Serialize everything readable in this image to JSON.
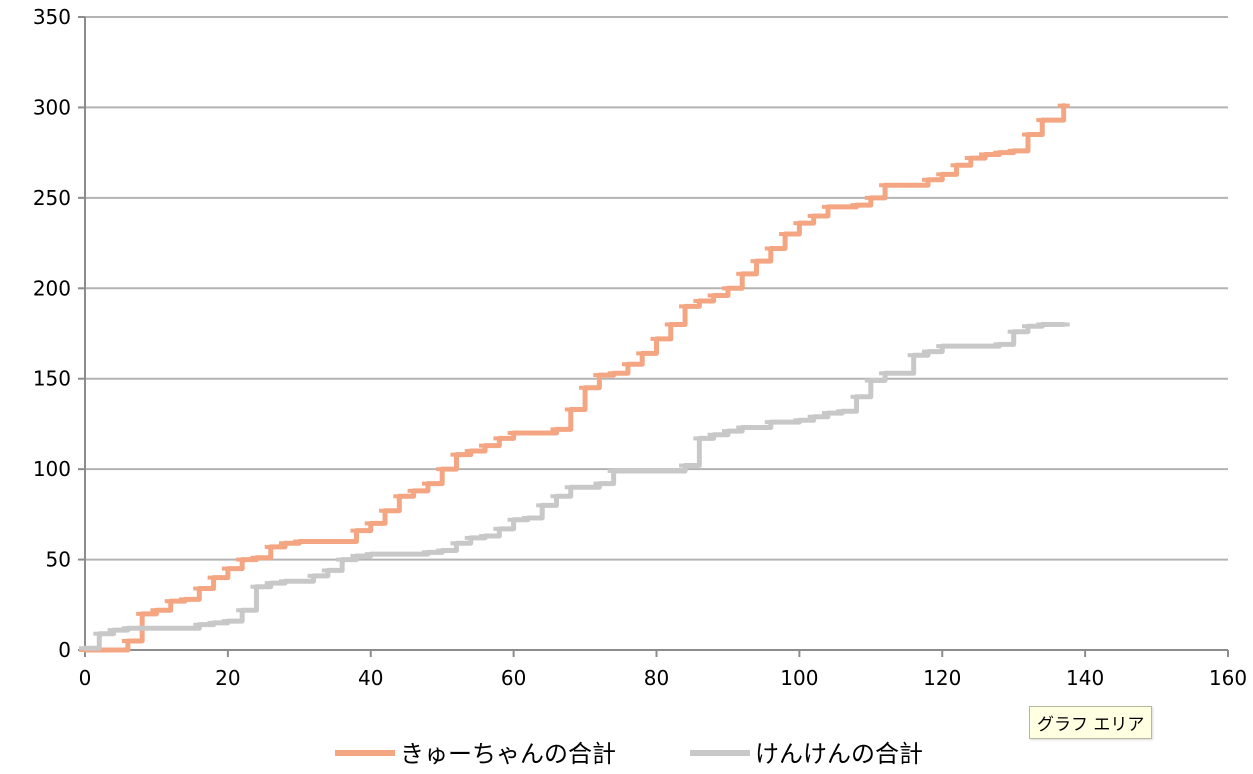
{
  "chart_data": {
    "type": "line",
    "title": "",
    "xlabel": "",
    "ylabel": "",
    "xlim": [
      0,
      160
    ],
    "ylim": [
      0,
      350
    ],
    "x_ticks": [
      0,
      20,
      40,
      60,
      80,
      100,
      120,
      140,
      160
    ],
    "y_ticks": [
      0,
      50,
      100,
      150,
      200,
      250,
      300,
      350
    ],
    "x_tick_labels": [
      "0",
      "20",
      "40",
      "60",
      "80",
      "100",
      "120",
      "140",
      "160"
    ],
    "y_tick_labels": [
      "0",
      "50",
      "100",
      "150",
      "200",
      "250",
      "300",
      "350"
    ],
    "grid": "horizontal",
    "legend_position": "bottom",
    "series": [
      {
        "name": "きゅーちゃんの合計",
        "color": "#f4a582",
        "x": [
          0,
          2,
          4,
          6,
          8,
          10,
          12,
          14,
          16,
          18,
          20,
          22,
          24,
          26,
          28,
          30,
          32,
          34,
          36,
          38,
          40,
          42,
          44,
          46,
          48,
          50,
          52,
          54,
          56,
          58,
          60,
          62,
          64,
          66,
          68,
          70,
          72,
          74,
          76,
          78,
          80,
          82,
          84,
          86,
          88,
          90,
          92,
          94,
          96,
          98,
          100,
          102,
          104,
          106,
          108,
          110,
          112,
          114,
          116,
          118,
          120,
          122,
          124,
          126,
          128,
          130,
          132,
          134,
          137
        ],
        "y": [
          0,
          0,
          0,
          5,
          20,
          22,
          27,
          28,
          34,
          40,
          45,
          50,
          51,
          57,
          59,
          60,
          60,
          60,
          60,
          66,
          70,
          77,
          85,
          88,
          92,
          100,
          108,
          110,
          113,
          117,
          120,
          120,
          120,
          122,
          133,
          145,
          152,
          153,
          158,
          164,
          172,
          180,
          190,
          193,
          196,
          200,
          208,
          215,
          222,
          230,
          236,
          240,
          245,
          245,
          246,
          250,
          257,
          257,
          257,
          260,
          263,
          268,
          272,
          274,
          275,
          276,
          285,
          293,
          301
        ]
      },
      {
        "name": "けんけんの合計",
        "color": "#c8c8c8",
        "x": [
          0,
          2,
          4,
          6,
          8,
          10,
          12,
          14,
          16,
          18,
          20,
          22,
          24,
          26,
          28,
          30,
          32,
          34,
          36,
          38,
          40,
          42,
          44,
          46,
          48,
          50,
          52,
          54,
          56,
          58,
          60,
          62,
          64,
          66,
          68,
          70,
          72,
          74,
          76,
          78,
          80,
          82,
          84,
          86,
          88,
          90,
          92,
          94,
          96,
          98,
          100,
          102,
          104,
          106,
          108,
          110,
          112,
          114,
          116,
          118,
          120,
          122,
          124,
          126,
          128,
          130,
          132,
          134,
          137
        ],
        "y": [
          1,
          9,
          11,
          12,
          12,
          12,
          12,
          12,
          14,
          15,
          16,
          22,
          35,
          37,
          38,
          38,
          41,
          44,
          50,
          52,
          53,
          53,
          53,
          53,
          54,
          55,
          59,
          62,
          63,
          67,
          72,
          73,
          80,
          85,
          90,
          90,
          92,
          99,
          99,
          99,
          99,
          99,
          102,
          117,
          119,
          121,
          123,
          123,
          126,
          126,
          127,
          129,
          131,
          132,
          140,
          149,
          153,
          153,
          163,
          165,
          168,
          168,
          168,
          168,
          169,
          176,
          179,
          180,
          180
        ]
      }
    ]
  },
  "tooltip": {
    "text": "グラフ エリア"
  }
}
